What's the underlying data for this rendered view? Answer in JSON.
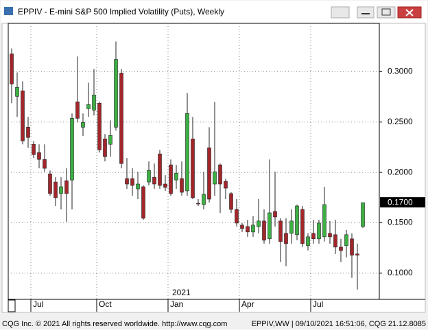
{
  "window_title": "EPPIV - E-mini S&P 500 Implied Volatility (Puts), Weekly",
  "footer": {
    "left": "CQG Inc. © 2021 All rights reserved worldwide. http://www.cqg.com",
    "right": "EPPIV,WW | 09/10/2021 16:51:06, CQG 21.12.8085"
  },
  "chart_data": {
    "type": "candlestick",
    "categories": [
      null,
      null,
      null,
      null,
      "Jul",
      null,
      null,
      null,
      null,
      null,
      null,
      null,
      null,
      null,
      null,
      null,
      "Oct",
      null,
      null,
      null,
      null,
      null,
      null,
      null,
      null,
      null,
      null,
      null,
      null,
      "Jan",
      null,
      null,
      null,
      null,
      null,
      null,
      null,
      null,
      null,
      null,
      null,
      null,
      "Apr",
      null,
      null,
      null,
      null,
      null,
      null,
      null,
      null,
      null,
      null,
      null,
      null,
      "Jul",
      null,
      null,
      null,
      null,
      null,
      null,
      null,
      null,
      null
    ],
    "year_label": "2021",
    "open": [
      0.3177,
      0.2755,
      0.281,
      0.2449,
      0.2279,
      0.2197,
      0.2129,
      0.1986,
      0.1905,
      0.179,
      0.1918,
      0.1925,
      0.2701,
      0.2449,
      0.2633,
      0.2619,
      0.2687,
      0.2333,
      0.2279,
      0.2449,
      0.2986,
      0.1939,
      0.1939,
      0.1837,
      0.1858,
      0.1905,
      0.1952,
      0.2184,
      0.1885,
      0.2075,
      0.1925,
      0.1939,
      0.1817,
      0.2333,
      0.1694,
      0.1681,
      0.2245,
      0.1885,
      0.2075,
      0.1912,
      0.179,
      0.1633,
      0.1477,
      0.1463,
      0.1409,
      0.1463,
      0.1518,
      0.1341,
      0.1613,
      0.1518,
      0.1395,
      0.1395,
      0.1382,
      0.1633,
      0.1273,
      0.1395,
      0.1341,
      0.1361,
      0.1395,
      0.1382,
      0.1259,
      0.1273,
      0.1341,
      0.1191,
      0.1463
    ],
    "high": [
      0.3231,
      0.2993,
      0.2905,
      0.2551,
      0.2313,
      0.2279,
      0.2279,
      0.202,
      0.1952,
      0.1952,
      0.2041,
      0.2585,
      0.315,
      0.2585,
      0.2891,
      0.3027,
      0.2701,
      0.2381,
      0.2517,
      0.3299,
      0.3027,
      0.2143,
      0.2041,
      0.2007,
      0.1871,
      0.2109,
      0.2088,
      0.2224,
      0.1973,
      0.2129,
      0.2075,
      0.2109,
      0.2789,
      0.2551,
      0.1735,
      0.2007,
      0.2449,
      0.2701,
      0.2088,
      0.1939,
      0.1803,
      0.1735,
      0.1497,
      0.1531,
      0.1565,
      0.1735,
      0.1633,
      0.2129,
      0.2007,
      0.1545,
      0.1545,
      0.1633,
      0.1681,
      0.1667,
      0.1395,
      0.1531,
      0.1531,
      0.1858,
      0.1518,
      0.1531,
      0.1341,
      0.1429,
      0.1395,
      0.1293,
      0.17
    ],
    "low": [
      0.2687,
      0.2551,
      0.2279,
      0.2245,
      0.2143,
      0.2041,
      0.2007,
      0.1769,
      0.1667,
      0.1633,
      0.1511,
      0.1633,
      0.2497,
      0.2361,
      0.2551,
      0.2565,
      0.2197,
      0.2109,
      0.2156,
      0.2415,
      0.2041,
      0.1837,
      0.1769,
      0.1735,
      0.1531,
      0.1871,
      0.1837,
      0.1837,
      0.1817,
      0.1769,
      0.1837,
      0.1769,
      0.1769,
      0.1735,
      0.1667,
      0.1633,
      0.1701,
      0.1769,
      0.1599,
      0.1735,
      0.1599,
      0.1463,
      0.1409,
      0.1361,
      0.1361,
      0.1395,
      0.1293,
      0.1293,
      0.1463,
      0.111,
      0.1069,
      0.1293,
      0.1327,
      0.1259,
      0.1225,
      0.1293,
      0.1293,
      0.1314,
      0.1293,
      0.1191,
      0.111,
      0.1157,
      0.0953,
      0.0838,
      0.145
    ],
    "close": [
      0.2878,
      0.2844,
      0.2313,
      0.2347,
      0.2177,
      0.2129,
      0.2041,
      0.179,
      0.1749,
      0.1858,
      0.179,
      0.2537,
      0.2537,
      0.2497,
      0.2673,
      0.2769,
      0.2224,
      0.2156,
      0.2367,
      0.3122,
      0.2088,
      0.1885,
      0.1871,
      0.1885,
      0.1545,
      0.202,
      0.1885,
      0.1871,
      0.1851,
      0.179,
      0.1993,
      0.1803,
      0.2585,
      0.1749,
      0.1688,
      0.1783,
      0.1735,
      0.2007,
      0.1885,
      0.1844,
      0.1633,
      0.1497,
      0.1443,
      0.1409,
      0.1477,
      0.1518,
      0.1327,
      0.1599,
      0.1558,
      0.1314,
      0.1293,
      0.1518,
      0.1667,
      0.1293,
      0.1361,
      0.1341,
      0.1497,
      0.1681,
      0.1361,
      0.1259,
      0.1225,
      0.1382,
      0.1178,
      0.1178,
      0.17
    ],
    "last_label": "0.1700",
    "up_color": "#3cb043",
    "down_color": "#a3262b",
    "ylim": [
      0.074,
      0.348
    ],
    "yticks": [
      {
        "value": 0.1,
        "label": "0.1000"
      },
      {
        "value": 0.15,
        "label": "0.1500"
      },
      {
        "value": 0.2,
        "label": "0.2000"
      },
      {
        "value": 0.25,
        "label": "0.2500"
      },
      {
        "value": 0.3,
        "label": "0.3000"
      }
    ],
    "grid": true
  }
}
